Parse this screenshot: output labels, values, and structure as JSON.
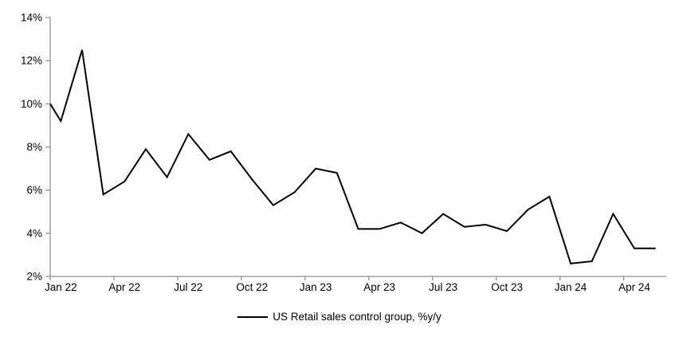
{
  "chart_data": {
    "type": "line",
    "title": "",
    "legend_position": "bottom",
    "grid": false,
    "line_color": "#000000",
    "axis_color": "#919191",
    "text_color": "#000000",
    "ylim": [
      2,
      14
    ],
    "ytick_step": 2,
    "ytick_suffix": "%",
    "xtick_every": 3,
    "x_tick_labels": [
      "Jan 22",
      "Apr 22",
      "Jul 22",
      "Oct 22",
      "Jan 23",
      "Apr 23",
      "Jul 23",
      "Oct 23",
      "Jan 24",
      "Apr 24"
    ],
    "months": [
      "Jan 22",
      "Feb 22",
      "Mar 22",
      "Apr 22",
      "May 22",
      "Jun 22",
      "Jul 22",
      "Aug 22",
      "Sep 22",
      "Oct 22",
      "Nov 22",
      "Dec 22",
      "Jan 23",
      "Feb 23",
      "Mar 23",
      "Apr 23",
      "May 23",
      "Jun 23",
      "Jul 23",
      "Aug 23",
      "Sep 23",
      "Oct 23",
      "Nov 23",
      "Dec 23",
      "Jan 24",
      "Feb 24",
      "Mar 24",
      "Apr 24",
      "May 24"
    ],
    "series": [
      {
        "name": "US Retail sales control group, %y/y",
        "axis_lead_in_value": 10.0,
        "values": [
          9.2,
          12.5,
          5.8,
          6.4,
          7.9,
          6.6,
          8.6,
          7.4,
          7.8,
          6.5,
          5.3,
          5.9,
          7.0,
          6.8,
          4.2,
          4.2,
          4.5,
          4.0,
          4.9,
          4.3,
          4.4,
          4.1,
          5.1,
          5.7,
          2.6,
          2.7,
          4.9,
          3.3,
          3.3
        ]
      }
    ]
  },
  "legend": {
    "label": "US Retail sales control group, %y/y"
  }
}
